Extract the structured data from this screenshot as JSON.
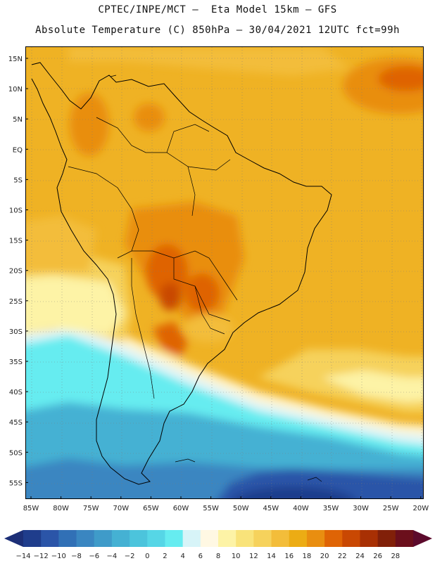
{
  "header": {
    "line1": "CPTEC/INPE/MCT –  Eta Model 15km – GFS",
    "line2": "Absolute Temperature (C) 850hPa – 30/04/2021 12UTC fct=99h"
  },
  "map": {
    "lat_labels": [
      "15N",
      "10N",
      "5N",
      "EQ",
      "5S",
      "10S",
      "15S",
      "20S",
      "25S",
      "30S",
      "35S",
      "40S",
      "45S",
      "50S",
      "55S"
    ],
    "lon_labels": [
      "85W",
      "80W",
      "75W",
      "70W",
      "65W",
      "60W",
      "55W",
      "50W",
      "45W",
      "40W",
      "35W",
      "30W",
      "25W",
      "20W"
    ]
  },
  "colorbar": {
    "labels": [
      "-14",
      "-12",
      "-10",
      "-8",
      "-6",
      "-4",
      "-2",
      "0",
      "2",
      "4",
      "6",
      "8",
      "10",
      "12",
      "14",
      "16",
      "18",
      "20",
      "22",
      "24",
      "26",
      "28"
    ],
    "colors": [
      "#1f3d8c",
      "#2b55a8",
      "#3170b6",
      "#3a86c1",
      "#3f9bc9",
      "#45b1d3",
      "#4cc4dc",
      "#56d6e6",
      "#66ecf0",
      "#d7f4f8",
      "#fff8e3",
      "#fdf3a6",
      "#f9e37a",
      "#f6d25c",
      "#f3bd3a",
      "#ecac14",
      "#e98e10",
      "#df6405",
      "#c94803",
      "#a83004",
      "#812009",
      "#6b0f1c"
    ],
    "low_arrow_color": "#1c2f77",
    "high_arrow_color": "#5c0a2c"
  }
}
